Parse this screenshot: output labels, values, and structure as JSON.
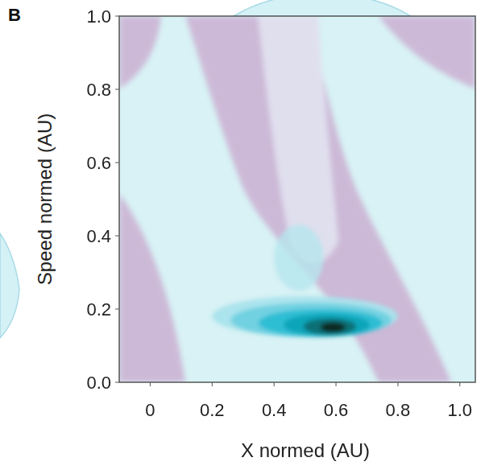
{
  "chart_data": {
    "type": "density",
    "panel_label": "B",
    "xlabel": "X normed (AU)",
    "ylabel": "Speed normed (AU)",
    "xlim": [
      -0.1,
      1.05
    ],
    "ylim": [
      0,
      1
    ],
    "xticks": [
      0,
      0.2,
      0.4,
      0.6,
      0.8,
      {
        "value": 1,
        "label": "1.0"
      }
    ],
    "yticks": [
      {
        "value": 0,
        "label": "0.0"
      },
      0.2,
      0.4,
      0.6,
      0.8,
      {
        "value": 1,
        "label": "1.0"
      }
    ],
    "grid": false,
    "contours": [
      {
        "x": 0.48,
        "y": 0.34,
        "rx": 0.08,
        "ry": 0.09
      },
      {
        "x": 0.5,
        "y": 0.18,
        "rx": 0.3,
        "ry": 0.055
      },
      {
        "x": 0.52,
        "y": 0.17,
        "rx": 0.26,
        "ry": 0.047
      },
      {
        "x": 0.55,
        "y": 0.162,
        "rx": 0.2,
        "ry": 0.038
      },
      {
        "x": 0.57,
        "y": 0.157,
        "rx": 0.14,
        "ry": 0.031
      },
      {
        "x": 0.58,
        "y": 0.152,
        "rx": 0.085,
        "ry": 0.023
      },
      {
        "x": 0.59,
        "y": 0.15,
        "rx": 0.04,
        "ry": 0.014
      }
    ],
    "colors": [
      "#b5e6ee",
      "#a9e3ec",
      "#6fd1e0",
      "#2bbdd3",
      "#0fa3b8",
      "#0b6b72",
      "#10261f"
    ]
  }
}
